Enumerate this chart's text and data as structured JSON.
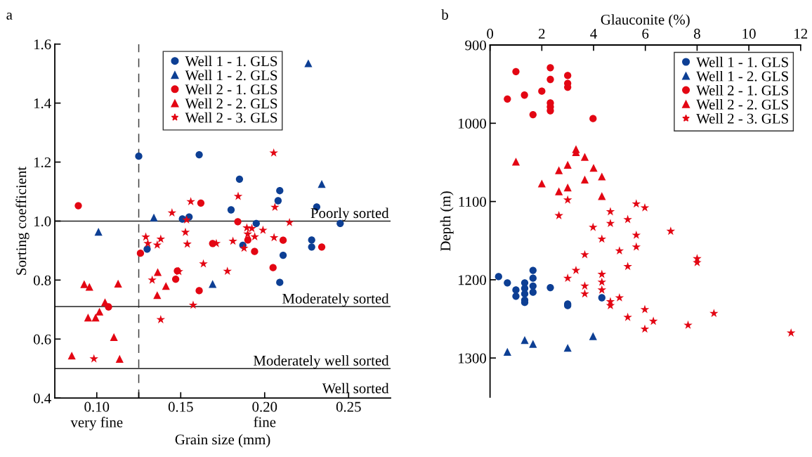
{
  "chart_data": [
    {
      "type": "scatter",
      "title": "a",
      "xlabel": "Grain size (mm)",
      "ylabel": "Sorting coefficient",
      "xlim": [
        0.075,
        0.275
      ],
      "ylim": [
        0.4,
        1.6
      ],
      "xticks": [
        {
          "value": 0.1,
          "label": "0.10\nvery fine"
        },
        {
          "value": 0.125,
          "label": null
        },
        {
          "value": 0.15,
          "label": "0.15"
        },
        {
          "value": 0.2,
          "label": "0.20\nfine"
        },
        {
          "value": 0.25,
          "label": "0.25"
        }
      ],
      "yticks": [
        0.4,
        0.6,
        0.8,
        {
          "value": 1.0,
          "label": "1.0"
        },
        1.2,
        1.4,
        1.6
      ],
      "grid": false,
      "legend": "top",
      "ref_lines": [
        {
          "axis": "x",
          "value": 0.125,
          "line_style": "dashed",
          "color": "#404040"
        },
        {
          "axis": "y",
          "value": 1.0,
          "color": "#202020",
          "label": "Poorly sorted"
        },
        {
          "axis": "y",
          "value": 0.71,
          "color": "#202020",
          "label": "Moderately sorted"
        },
        {
          "axis": "y",
          "value": 0.5,
          "color": "#202020",
          "label": "Moderately well sorted"
        }
      ],
      "annotations": [
        "Well sorted"
      ],
      "series": [
        {
          "name": "Well 1 - 1. GLS",
          "color": "#0d3f94",
          "marker": "circle",
          "x": [
            0.125,
            0.161,
            0.151,
            0.155,
            0.13,
            0.185,
            0.209,
            0.208,
            0.18,
            0.231,
            0.195,
            0.245,
            0.228,
            0.228,
            0.187,
            0.211,
            0.209
          ],
          "values": [
            1.22,
            1.225,
            1.007,
            1.014,
            0.905,
            1.142,
            1.103,
            1.069,
            1.038,
            1.048,
            0.992,
            0.992,
            0.936,
            0.912,
            0.918,
            0.884,
            0.792
          ]
        },
        {
          "name": "Well 1 - 2. GLS",
          "color": "#0d3f94",
          "marker": "triangle",
          "x": [
            0.101,
            0.134,
            0.169,
            0.226,
            0.234
          ],
          "values": [
            0.964,
            1.012,
            0.787,
            1.535,
            1.126
          ]
        },
        {
          "name": "Well 2 - 1. GLS",
          "color": "#e30613",
          "marker": "circle",
          "x": [
            0.089,
            0.162,
            0.126,
            0.169,
            0.148,
            0.147,
            0.161,
            0.107,
            0.184,
            0.19,
            0.194,
            0.211,
            0.234,
            0.205
          ],
          "values": [
            1.052,
            1.061,
            0.891,
            0.924,
            0.831,
            0.803,
            0.764,
            0.709,
            0.998,
            0.936,
            0.897,
            0.935,
            0.912,
            0.842
          ]
        },
        {
          "name": "Well 2 - 2. GLS",
          "color": "#e30613",
          "marker": "triangle",
          "x": [
            0.0925,
            0.0956,
            0.1127,
            0.1363,
            0.1412,
            0.136,
            0.1049,
            0.1016,
            0.0948,
            0.0993,
            0.1102,
            0.0851,
            0.1136
          ],
          "values": [
            0.786,
            0.777,
            0.788,
            0.827,
            0.78,
            0.749,
            0.725,
            0.693,
            0.673,
            0.673,
            0.607,
            0.544,
            0.533
          ]
        },
        {
          "name": "Well 2 - 3. GLS",
          "color": "#e30613",
          "marker": "star",
          "x": [
            0.156,
            0.1448,
            0.1535,
            0.1528,
            0.1292,
            0.1381,
            0.1304,
            0.136,
            0.1539,
            0.1712,
            0.1635,
            0.1489,
            0.133,
            0.1574,
            0.1381,
            0.0983,
            0.2054,
            0.1842,
            0.2061,
            0.2148,
            0.1894,
            0.1924,
            0.199,
            0.1899,
            0.1941,
            0.2056,
            0.1811,
            0.1877,
            0.1778
          ],
          "values": [
            1.066,
            1.028,
            1.004,
            0.962,
            0.946,
            0.939,
            0.924,
            0.919,
            0.922,
            0.924,
            0.855,
            0.829,
            0.8,
            0.715,
            0.666,
            0.533,
            1.231,
            1.084,
            1.047,
            0.995,
            0.977,
            0.975,
            0.969,
            0.956,
            0.947,
            0.944,
            0.932,
            0.908,
            0.83
          ]
        }
      ]
    },
    {
      "type": "scatter",
      "title": "b",
      "xlabel": "Glauconite (%)",
      "ylabel": "Depth (m)",
      "xlim": [
        0,
        12
      ],
      "ylim": [
        1350,
        900
      ],
      "xticks": [
        0,
        2,
        4,
        6,
        8,
        10,
        12
      ],
      "yticks": [
        900,
        1000,
        1100,
        1200,
        1300
      ],
      "grid": false,
      "legend": "top right",
      "series": [
        {
          "name": "Well 1 - 1. GLS",
          "color": "#0d3f94",
          "marker": "circle",
          "x": [
            0.33,
            0.67,
            1.0,
            1.0,
            1.34,
            1.34,
            1.34,
            1.34,
            1.34,
            1.66,
            1.66,
            1.66,
            1.66,
            2.33,
            3.0,
            3.0,
            4.32
          ],
          "values": [
            1196,
            1204,
            1213,
            1221,
            1204,
            1211,
            1218,
            1226,
            1229,
            1188,
            1198,
            1208,
            1216,
            1210,
            1231,
            1233,
            1223
          ]
        },
        {
          "name": "Well 1 - 2. GLS",
          "color": "#0d3f94",
          "marker": "triangle",
          "x": [
            0.67,
            1.34,
            1.66,
            3.0,
            3.98
          ],
          "values": [
            1292,
            1277,
            1282,
            1287,
            1272
          ]
        },
        {
          "name": "Well 2 - 1. GLS",
          "color": "#e30613",
          "marker": "circle",
          "x": [
            0.67,
            1.0,
            1.33,
            1.66,
            2.0,
            2.33,
            2.33,
            2.33,
            2.33,
            2.33,
            3.0,
            3.0,
            3.0,
            3.98
          ],
          "values": [
            969,
            934,
            964,
            989,
            959,
            929,
            944,
            974,
            979,
            984,
            939,
            949,
            954,
            994
          ]
        },
        {
          "name": "Well 2 - 2. GLS",
          "color": "#e30613",
          "marker": "triangle",
          "x": [
            1.0,
            2.0,
            2.66,
            2.66,
            3.0,
            3.0,
            3.32,
            3.32,
            3.66,
            3.66,
            4.0,
            4.32,
            4.32
          ],
          "values": [
            1049,
            1077,
            1060,
            1087,
            1053,
            1082,
            1033,
            1037,
            1043,
            1072,
            1057,
            1068,
            1093
          ]
        },
        {
          "name": "Well 2 - 3. GLS",
          "color": "#e30613",
          "marker": "star",
          "x": [
            3.0,
            2.66,
            4.65,
            5.65,
            5.98,
            5.32,
            4.65,
            3.98,
            6.98,
            5.65,
            4.32,
            5.65,
            5.0,
            3.66,
            8.0,
            8.0,
            5.32,
            3.32,
            3.0,
            4.32,
            4.32,
            3.66,
            4.32,
            3.66,
            5.0,
            4.65,
            4.65,
            5.98,
            8.65,
            5.32,
            6.31,
            7.65,
            5.98,
            11.63
          ],
          "values": [
            1098,
            1118,
            1113,
            1103,
            1108,
            1123,
            1128,
            1133,
            1138,
            1143,
            1148,
            1158,
            1163,
            1168,
            1173,
            1178,
            1183,
            1188,
            1198,
            1193,
            1203,
            1208,
            1213,
            1218,
            1223,
            1228,
            1233,
            1238,
            1243,
            1248,
            1253,
            1258,
            1263,
            1268
          ]
        }
      ]
    }
  ]
}
